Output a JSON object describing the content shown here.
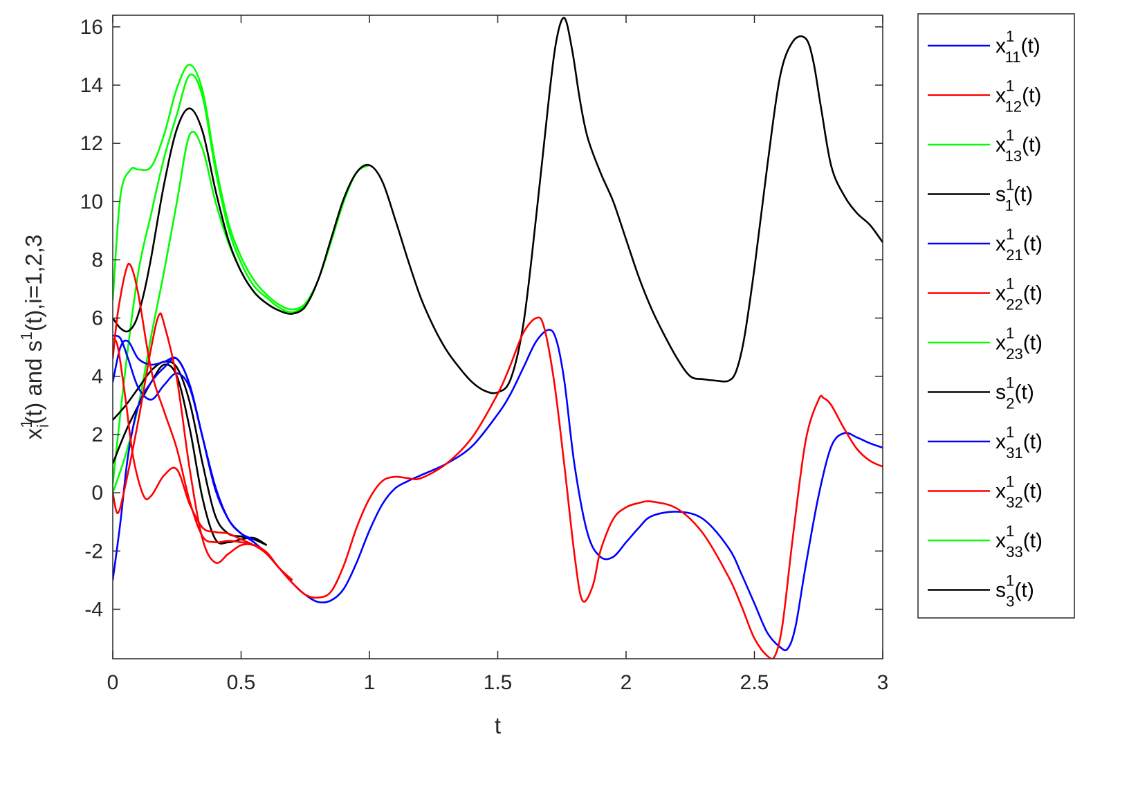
{
  "chart_data": {
    "type": "line",
    "title": "",
    "xlabel": "t",
    "ylabel": {
      "base": "x",
      "sub": "i",
      "sup": "1",
      "rest1": "(t) and s",
      "sup2": "1",
      "rest2": "(t),i=1,2,3"
    },
    "xlim": [
      0,
      3
    ],
    "ylim": [
      -5.7,
      16.4
    ],
    "xticks": [
      0,
      0.5,
      1,
      1.5,
      2,
      2.5,
      3
    ],
    "xtick_labels": [
      "0",
      "0.5",
      "1",
      "1.5",
      "2",
      "2.5",
      "3"
    ],
    "yticks": [
      -4,
      -2,
      0,
      2,
      4,
      6,
      8,
      10,
      12,
      14,
      16
    ],
    "ytick_labels": [
      "-4",
      "-2",
      "0",
      "2",
      "4",
      "6",
      "8",
      "10",
      "12",
      "14",
      "16"
    ],
    "grid": false,
    "legend_position": "outside-right",
    "legend": [
      {
        "base": "x",
        "sup": "1",
        "sub": "11",
        "tail": "(t)",
        "color": "#0000ff"
      },
      {
        "base": "x",
        "sup": "1",
        "sub": "12",
        "tail": "(t)",
        "color": "#ff0000"
      },
      {
        "base": "x",
        "sup": "1",
        "sub": "13",
        "tail": "(t)",
        "color": "#00ff00"
      },
      {
        "base": "s",
        "sup": "1",
        "sub": "1",
        "tail": "(t)",
        "color": "#000000"
      },
      {
        "base": "x",
        "sup": "1",
        "sub": "21",
        "tail": "(t)",
        "color": "#0000ff"
      },
      {
        "base": "x",
        "sup": "1",
        "sub": "22",
        "tail": "(t)",
        "color": "#ff0000"
      },
      {
        "base": "x",
        "sup": "1",
        "sub": "23",
        "tail": "(t)",
        "color": "#00ff00"
      },
      {
        "base": "s",
        "sup": "1",
        "sub": "2",
        "tail": "(t)",
        "color": "#000000"
      },
      {
        "base": "x",
        "sup": "1",
        "sub": "31",
        "tail": "(t)",
        "color": "#0000ff"
      },
      {
        "base": "x",
        "sup": "1",
        "sub": "32",
        "tail": "(t)",
        "color": "#ff0000"
      },
      {
        "base": "x",
        "sup": "1",
        "sub": "33",
        "tail": "(t)",
        "color": "#00ff00"
      },
      {
        "base": "s",
        "sup": "1",
        "sub": "3",
        "tail": "(t)",
        "color": "#000000"
      }
    ],
    "series": [
      {
        "color": "#00ff00",
        "x": [
          0,
          0.03,
          0.07,
          0.1,
          0.15,
          0.2,
          0.25,
          0.3,
          0.35,
          0.4,
          0.45,
          0.5,
          0.55,
          0.6,
          0.65,
          0.7,
          0.75,
          0.8,
          0.85,
          0.9,
          0.95,
          1.0
        ],
        "y": [
          6.6,
          10.2,
          11.1,
          11.1,
          11.2,
          12.3,
          13.9,
          14.7,
          13.8,
          11.3,
          9.3,
          8.1,
          7.3,
          6.8,
          6.45,
          6.3,
          6.5,
          7.3,
          8.6,
          10.0,
          11.0,
          11.25
        ]
      },
      {
        "color": "#00ff00",
        "x": [
          0,
          0.05,
          0.1,
          0.15,
          0.2,
          0.25,
          0.3,
          0.35,
          0.4,
          0.45,
          0.5,
          0.55,
          0.6,
          0.65,
          0.7,
          0.75
        ],
        "y": [
          0.3,
          4.3,
          7.6,
          9.6,
          11.5,
          13.0,
          14.35,
          13.6,
          11.1,
          9.1,
          7.9,
          7.1,
          6.7,
          6.35,
          6.2,
          6.4
        ]
      },
      {
        "color": "#00ff00",
        "x": [
          0,
          0.05,
          0.1,
          0.15,
          0.2,
          0.25,
          0.3,
          0.35,
          0.4,
          0.45,
          0.5,
          0.55,
          0.6,
          0.65,
          0.7,
          0.75
        ],
        "y": [
          0.0,
          1.3,
          3.0,
          5.4,
          7.6,
          10.0,
          12.3,
          11.8,
          10.0,
          8.6,
          7.6,
          6.9,
          6.5,
          6.25,
          6.15,
          6.35
        ]
      },
      {
        "color": "#000000",
        "x": [
          0,
          0.03,
          0.06,
          0.09,
          0.12,
          0.15,
          0.2,
          0.25,
          0.3,
          0.35,
          0.4,
          0.45,
          0.5,
          0.55,
          0.6,
          0.65,
          0.7,
          0.75,
          0.8,
          0.85,
          0.9,
          0.95,
          1.0,
          1.05,
          1.1,
          1.15,
          1.2,
          1.25,
          1.3,
          1.35,
          1.4,
          1.45,
          1.5,
          1.55,
          1.6,
          1.65,
          1.7,
          1.73,
          1.76,
          1.79,
          1.82,
          1.85,
          1.9,
          1.95,
          2.0,
          2.05,
          2.1,
          2.15,
          2.2,
          2.25,
          2.3,
          2.35,
          2.4,
          2.43,
          2.46,
          2.5,
          2.55,
          2.6,
          2.65,
          2.7,
          2.73,
          2.76,
          2.8,
          2.85,
          2.9,
          2.95,
          3.0
        ],
        "y": [
          6.0,
          5.65,
          5.55,
          5.9,
          6.8,
          8.1,
          10.6,
          12.5,
          13.2,
          12.4,
          10.4,
          8.7,
          7.6,
          6.9,
          6.5,
          6.25,
          6.15,
          6.4,
          7.3,
          8.7,
          10.1,
          11.0,
          11.25,
          10.7,
          9.4,
          8.0,
          6.7,
          5.7,
          4.9,
          4.3,
          3.8,
          3.5,
          3.45,
          3.9,
          5.8,
          9.5,
          13.6,
          15.6,
          16.3,
          15.2,
          13.5,
          12.2,
          11.0,
          10.0,
          8.7,
          7.4,
          6.3,
          5.4,
          4.6,
          4.0,
          3.9,
          3.85,
          3.85,
          4.2,
          5.3,
          7.7,
          11.2,
          14.3,
          15.5,
          15.6,
          14.8,
          13.2,
          11.2,
          10.2,
          9.6,
          9.2,
          8.6
        ]
      },
      {
        "color": "#000000",
        "x": [
          0,
          0.05,
          0.1,
          0.15,
          0.2,
          0.25,
          0.3,
          0.35,
          0.4,
          0.45,
          0.5,
          0.55,
          0.6
        ],
        "y": [
          2.5,
          3.0,
          3.6,
          4.2,
          4.5,
          4.3,
          3.1,
          1.0,
          -0.8,
          -1.4,
          -1.5,
          -1.6,
          -1.8
        ]
      },
      {
        "color": "#000000",
        "x": [
          0,
          0.05,
          0.1,
          0.15,
          0.2,
          0.25,
          0.3,
          0.35,
          0.4,
          0.45,
          0.5,
          0.55,
          0.6
        ],
        "y": [
          1.0,
          2.1,
          3.0,
          3.8,
          4.4,
          4.0,
          2.2,
          -0.2,
          -1.6,
          -1.7,
          -1.6,
          -1.55,
          -1.8
        ]
      },
      {
        "color": "#0000ff",
        "x": [
          0,
          0.03,
          0.06,
          0.1,
          0.15,
          0.2,
          0.25,
          0.3,
          0.35,
          0.4,
          0.45,
          0.5,
          0.55,
          0.6,
          0.65,
          0.7,
          0.75,
          0.8,
          0.85,
          0.9,
          0.95,
          1.0,
          1.05,
          1.1,
          1.15,
          1.2,
          1.3,
          1.4,
          1.5,
          1.55,
          1.6,
          1.65,
          1.7,
          1.73,
          1.76,
          1.8,
          1.85,
          1.9,
          1.95,
          2.0,
          2.05,
          2.1,
          2.2,
          2.3,
          2.4,
          2.45,
          2.5,
          2.55,
          2.6,
          2.63,
          2.66,
          2.7,
          2.75,
          2.8,
          2.85,
          2.9,
          2.95,
          3.0
        ],
        "y": [
          -3.0,
          -1.0,
          1.3,
          3.0,
          3.8,
          4.3,
          4.6,
          3.7,
          1.9,
          0.1,
          -0.9,
          -1.4,
          -1.7,
          -2.1,
          -2.6,
          -3.1,
          -3.5,
          -3.75,
          -3.7,
          -3.3,
          -2.4,
          -1.3,
          -0.4,
          0.15,
          0.4,
          0.6,
          1.0,
          1.6,
          2.7,
          3.4,
          4.3,
          5.2,
          5.6,
          5.2,
          3.8,
          0.9,
          -1.4,
          -2.2,
          -2.2,
          -1.7,
          -1.2,
          -0.8,
          -0.65,
          -0.9,
          -1.9,
          -2.8,
          -3.8,
          -4.8,
          -5.3,
          -5.35,
          -4.6,
          -2.5,
          -0.1,
          1.6,
          2.05,
          1.9,
          1.7,
          1.55
        ]
      },
      {
        "color": "#0000ff",
        "x": [
          0,
          0.03,
          0.06,
          0.1,
          0.15,
          0.2,
          0.25,
          0.3,
          0.35,
          0.4,
          0.45,
          0.5,
          0.55
        ],
        "y": [
          3.8,
          5.0,
          5.2,
          4.6,
          4.4,
          4.5,
          4.6,
          3.7,
          1.9,
          0.2,
          -0.9,
          -1.4,
          -1.6
        ]
      },
      {
        "color": "#0000ff",
        "x": [
          0,
          0.03,
          0.06,
          0.1,
          0.15,
          0.2,
          0.25,
          0.3,
          0.35,
          0.4,
          0.45,
          0.5,
          0.55
        ],
        "y": [
          5.4,
          5.3,
          4.6,
          3.6,
          3.2,
          3.7,
          4.1,
          3.6,
          1.9,
          0.2,
          -0.9,
          -1.4,
          -1.6
        ]
      },
      {
        "color": "#ff0000",
        "x": [
          0,
          0.02,
          0.05,
          0.07,
          0.1,
          0.15,
          0.2,
          0.25,
          0.3,
          0.35,
          0.4,
          0.45,
          0.5,
          0.55,
          0.6,
          0.65,
          0.7,
          0.75,
          0.8,
          0.85,
          0.9,
          0.95,
          1.0,
          1.05,
          1.1,
          1.15,
          1.2,
          1.3,
          1.4,
          1.5,
          1.55,
          1.6,
          1.65,
          1.68,
          1.72,
          1.76,
          1.8,
          1.83,
          1.87,
          1.9,
          1.95,
          2.0,
          2.05,
          2.1,
          2.2,
          2.3,
          2.4,
          2.45,
          2.5,
          2.55,
          2.58,
          2.61,
          2.65,
          2.7,
          2.75,
          2.77,
          2.8,
          2.85,
          2.9,
          2.95,
          3.0
        ],
        "y": [
          4.6,
          6.2,
          7.6,
          7.8,
          6.8,
          4.2,
          2.8,
          1.5,
          -0.3,
          -1.5,
          -1.7,
          -1.65,
          -1.7,
          -1.8,
          -2.1,
          -2.6,
          -3.1,
          -3.5,
          -3.6,
          -3.4,
          -2.5,
          -1.2,
          -0.2,
          0.4,
          0.55,
          0.5,
          0.5,
          1.0,
          1.9,
          3.4,
          4.4,
          5.5,
          6.0,
          5.7,
          3.8,
          0.9,
          -2.2,
          -3.7,
          -3.2,
          -2.0,
          -0.9,
          -0.5,
          -0.35,
          -0.3,
          -0.55,
          -1.4,
          -2.9,
          -3.9,
          -5.0,
          -5.6,
          -5.6,
          -4.5,
          -1.5,
          1.8,
          3.2,
          3.25,
          3.0,
          2.2,
          1.5,
          1.1,
          0.9
        ]
      },
      {
        "color": "#ff0000",
        "x": [
          0,
          0.02,
          0.05,
          0.08,
          0.12,
          0.15,
          0.2,
          0.25,
          0.3,
          0.35,
          0.4,
          0.45,
          0.5,
          0.55,
          0.6,
          0.65,
          0.7
        ],
        "y": [
          5.3,
          5.0,
          3.2,
          1.2,
          -0.1,
          -0.1,
          0.6,
          0.8,
          -0.4,
          -1.2,
          -1.35,
          -1.4,
          -1.6,
          -1.8,
          -2.1,
          -2.6,
          -3.0
        ]
      },
      {
        "color": "#ff0000",
        "x": [
          0,
          0.02,
          0.05,
          0.1,
          0.15,
          0.18,
          0.2,
          0.25,
          0.3,
          0.35,
          0.4,
          0.45,
          0.5,
          0.55,
          0.6,
          0.65,
          0.7
        ],
        "y": [
          0.0,
          -0.7,
          0.3,
          2.5,
          5.0,
          6.1,
          5.8,
          3.9,
          0.8,
          -1.6,
          -2.4,
          -2.1,
          -1.8,
          -1.8,
          -2.05,
          -2.6,
          -3.0
        ]
      }
    ]
  }
}
